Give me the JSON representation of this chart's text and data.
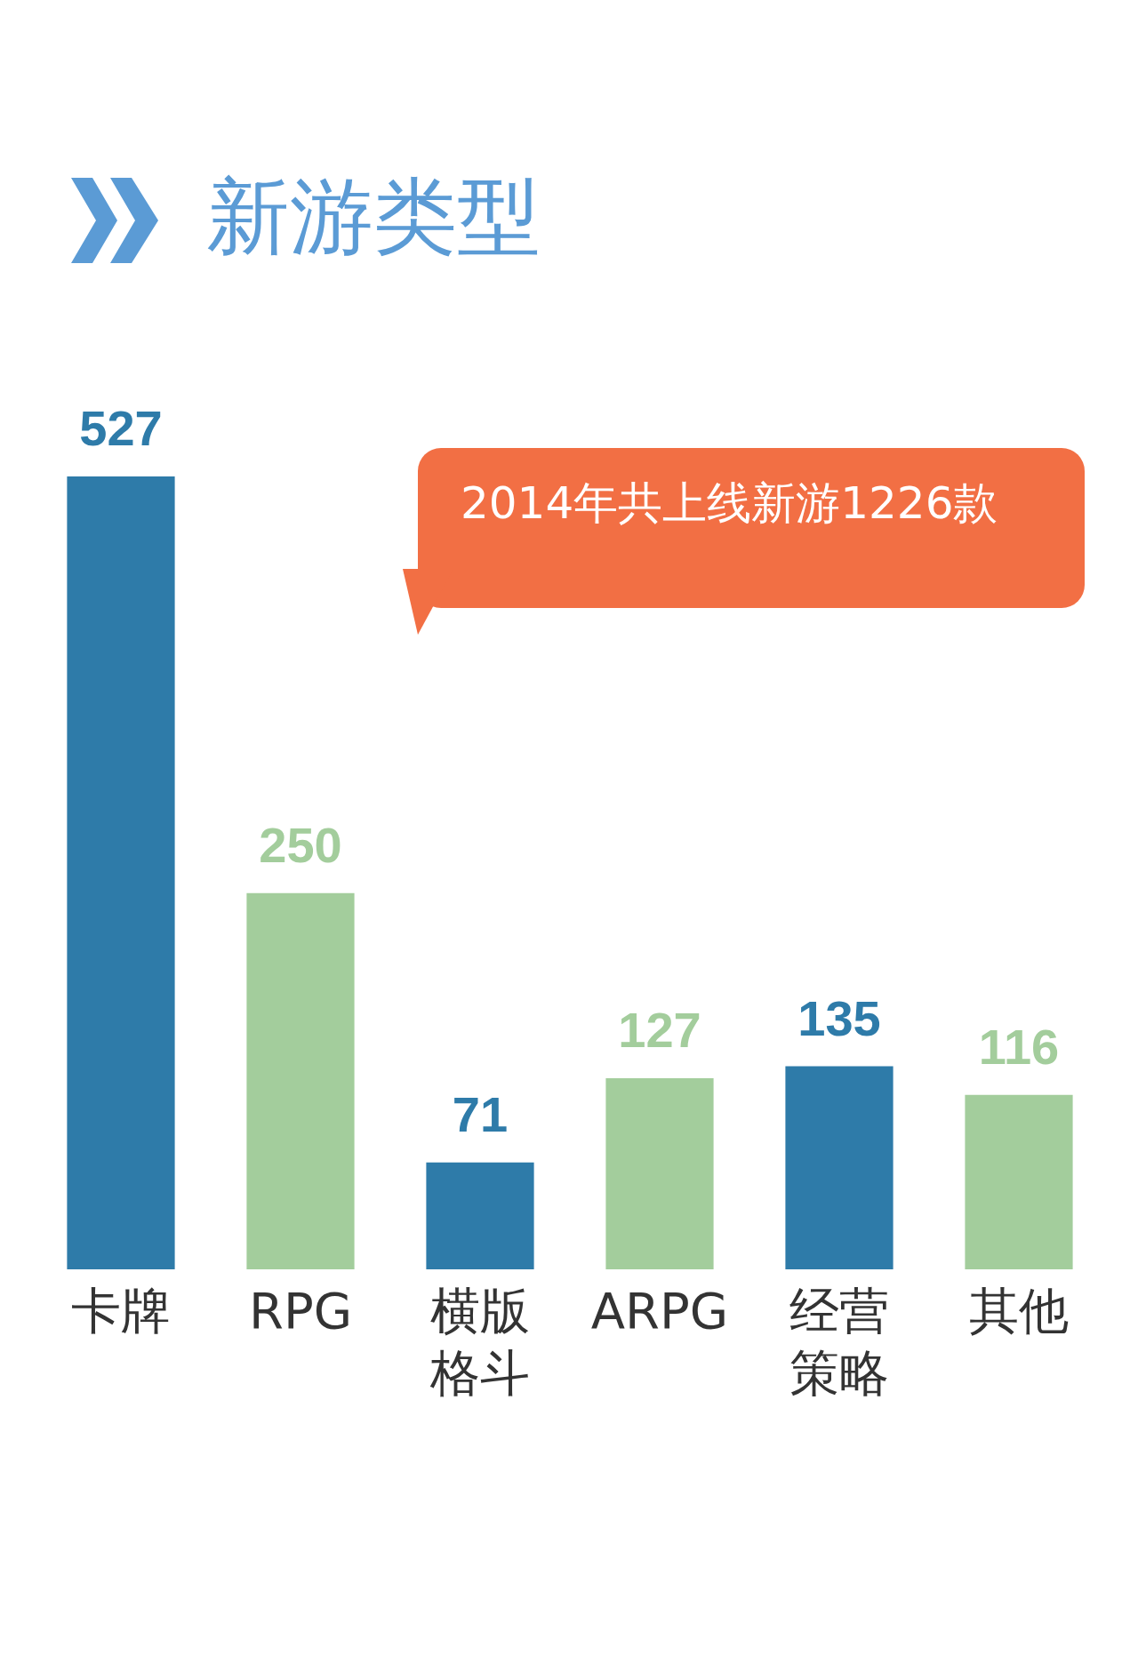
{
  "chart_data": {
    "type": "bar",
    "title": "新游类型",
    "categories": [
      "卡牌",
      "RPG",
      "横版格斗",
      "ARPG",
      "经营策略",
      "其他"
    ],
    "values": [
      527,
      250,
      71,
      127,
      135,
      116
    ],
    "colors": [
      "#2e7ba9",
      "#a3cd9c",
      "#2e7ba9",
      "#a3cd9c",
      "#2e7ba9",
      "#a3cd9c"
    ],
    "data_labels": true,
    "grid": false,
    "legend": false,
    "tick_labels": "x",
    "annotations": [
      "2014年共上线新游1226款"
    ]
  }
}
